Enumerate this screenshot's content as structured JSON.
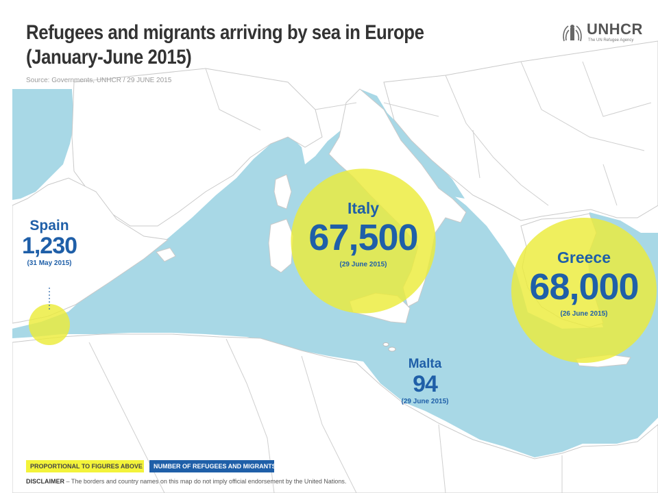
{
  "header": {
    "title_line1": "Refugees and migrants arriving by sea in Europe",
    "title_line2": "(January-June 2015)",
    "source": "Source: Governments, UNHCR / 29 JUNE 2015"
  },
  "logo": {
    "name": "UNHCR",
    "tagline": "The UN Refugee Agency"
  },
  "arrivals": [
    {
      "country": "Spain",
      "figure": "1,230",
      "date": "(31 May 2015)",
      "value": 1230
    },
    {
      "country": "Italy",
      "figure": "67,500",
      "date": "(29 June 2015)",
      "value": 67500
    },
    {
      "country": "Greece",
      "figure": "68,000",
      "date": "(26 June 2015)",
      "value": 68000
    },
    {
      "country": "Malta",
      "figure": "94",
      "date": "(29 June 2015)",
      "value": 94
    }
  ],
  "legend": {
    "proportional": "PROPORTIONAL TO FIGURES ABOVE",
    "number": "NUMBER OF REFUGEES AND MIGRANTS"
  },
  "disclaimer": {
    "label": "DISCLAIMER",
    "text": " – The borders and country names on this map do not imply official endorsement by the United Nations."
  },
  "colors": {
    "sea": "#a8d8e6",
    "land": "#ffffff",
    "border": "#c8c8c8",
    "bubble": "#ecec3a",
    "label_blue": "#1f5fa8",
    "legend_yellow": "#f3f33a",
    "legend_blue": "#1f5fa8"
  }
}
